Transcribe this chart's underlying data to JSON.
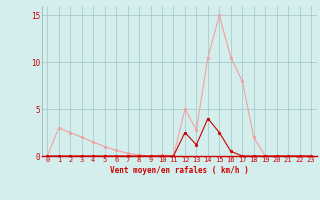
{
  "x_values": [
    0,
    1,
    2,
    3,
    4,
    5,
    6,
    7,
    8,
    9,
    10,
    11,
    12,
    13,
    14,
    15,
    16,
    17,
    18,
    19,
    20,
    21,
    22,
    23
  ],
  "rafales": [
    0,
    3,
    2.5,
    2,
    1.5,
    1.0,
    0.6,
    0.3,
    0.1,
    0.0,
    0.1,
    0.0,
    5,
    2.8,
    10.5,
    15,
    10.5,
    8,
    2,
    0,
    0,
    0,
    0,
    0
  ],
  "moyen": [
    0,
    0,
    0,
    0,
    0,
    0,
    0,
    0,
    0,
    0,
    0,
    0,
    2.5,
    1.2,
    4,
    2.5,
    0.5,
    0,
    0,
    0,
    0,
    0,
    0,
    0
  ],
  "rafales_color": "#f0a0a0",
  "moyen_color": "#cc0000",
  "background_color": "#d4eeee",
  "grid_color": "#a8cccc",
  "xlabel": "Vent moyen/en rafales ( km/h )",
  "xlabel_color": "#cc0000",
  "tick_color": "#cc0000",
  "ylim": [
    0,
    16
  ],
  "xlim": [
    -0.5,
    23.5
  ],
  "yticks": [
    0,
    5,
    10,
    15
  ],
  "xticks": [
    0,
    1,
    2,
    3,
    4,
    5,
    6,
    7,
    8,
    9,
    10,
    11,
    12,
    13,
    14,
    15,
    16,
    17,
    18,
    19,
    20,
    21,
    22,
    23
  ]
}
